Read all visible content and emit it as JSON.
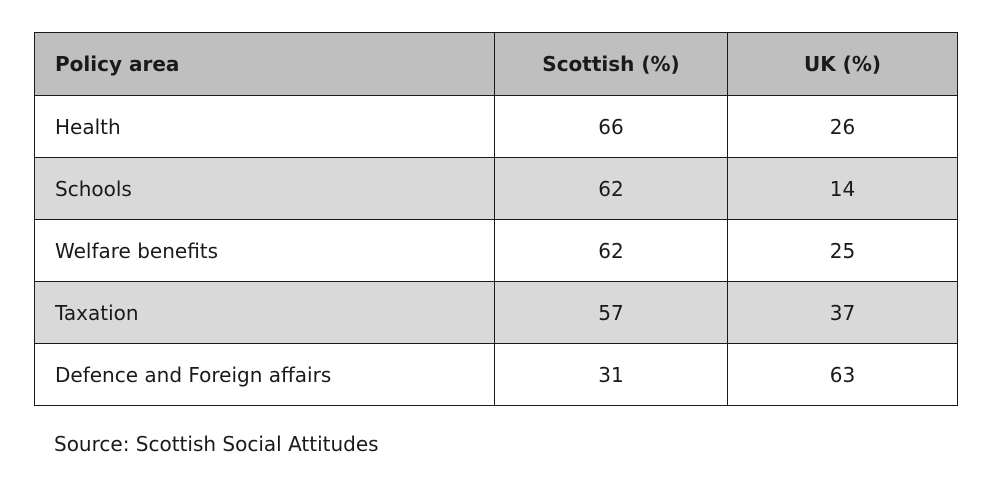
{
  "chart_data": {
    "type": "table",
    "columns": [
      "Policy area",
      "Scottish (%)",
      "UK (%)"
    ],
    "rows": [
      [
        "Health",
        "66",
        "26"
      ],
      [
        "Schools",
        "62",
        "14"
      ],
      [
        "Welfare benefits",
        "62",
        "25"
      ],
      [
        "Taxation",
        "57",
        "37"
      ],
      [
        "Defence and Foreign affairs",
        "31",
        "63"
      ]
    ],
    "source": "Source: Scottish Social Attitudes"
  },
  "colors": {
    "header_bg": "#bfbfbf",
    "shaded_row_bg": "#d9d9d9",
    "plain_row_bg": "#ffffff",
    "border": "#1a1a1a"
  }
}
